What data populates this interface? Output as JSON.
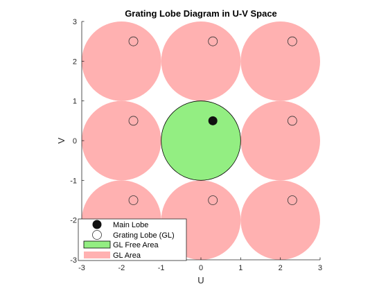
{
  "chart_data": {
    "type": "scatter",
    "title": "Grating Lobe Diagram in U-V Space",
    "xlabel": "U",
    "ylabel": "V",
    "xlim": [
      -3,
      3
    ],
    "ylim": [
      -3,
      3
    ],
    "xticks": [
      "-3",
      "-2",
      "-1",
      "0",
      "1",
      "2",
      "3"
    ],
    "yticks": [
      "-3",
      "-2",
      "-1",
      "0",
      "1",
      "2",
      "3"
    ],
    "grid": false,
    "legend_position": "bottom-left",
    "colors": {
      "gl_area": "#ffb1b1",
      "gl_free_area": "#93ee82",
      "main_lobe": "#111111",
      "axis": "#262626"
    },
    "gl_free_region": {
      "center": [
        0,
        0
      ],
      "radius": 1
    },
    "gl_region_centers": [
      [
        -2,
        2
      ],
      [
        0,
        2
      ],
      [
        2,
        2
      ],
      [
        -2,
        0
      ],
      [
        2,
        0
      ],
      [
        -2,
        -2
      ],
      [
        0,
        -2
      ],
      [
        2,
        -2
      ]
    ],
    "gl_region_radius": 1,
    "main_lobe": {
      "u": 0.3,
      "v": 0.5
    },
    "grating_lobes": [
      {
        "u": -1.7,
        "v": 2.5
      },
      {
        "u": 0.3,
        "v": 2.5
      },
      {
        "u": 2.3,
        "v": 2.5
      },
      {
        "u": -1.7,
        "v": 0.5
      },
      {
        "u": 2.3,
        "v": 0.5
      },
      {
        "u": -1.7,
        "v": -1.5
      },
      {
        "u": 0.3,
        "v": -1.5
      },
      {
        "u": 2.3,
        "v": -1.5
      }
    ],
    "legend": [
      "Main Lobe",
      "Grating Lobe (GL)",
      "GL Free Area",
      "GL Area"
    ]
  }
}
